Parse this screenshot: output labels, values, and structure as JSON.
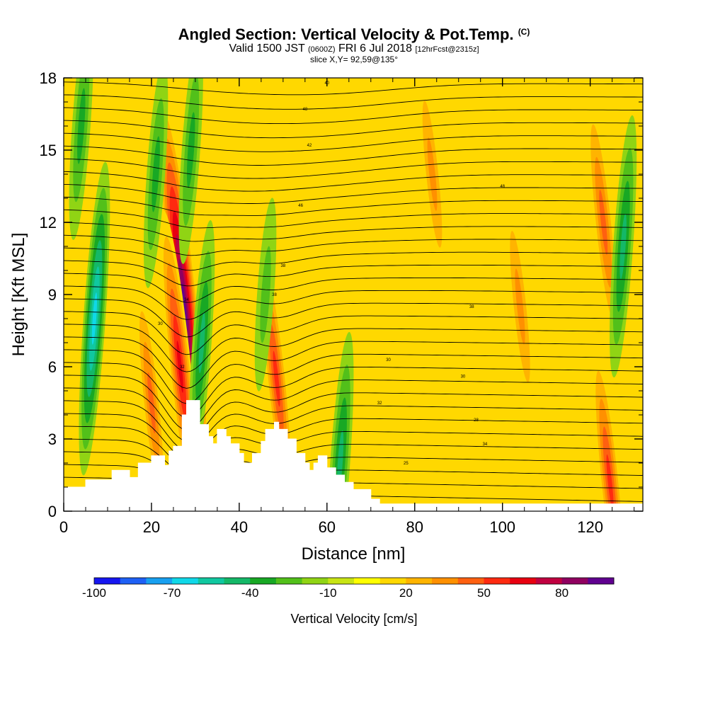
{
  "header": {
    "title": "Angled Section: Vertical Velocity & Pot.Temp.",
    "title_suffix": "(C)",
    "subtitle_main": "Valid 1500 JST",
    "subtitle_utc": "(0600Z)",
    "subtitle_date": "FRI 6 Jul 2018",
    "subtitle_fcst": "[12hrFcst@2315z]",
    "slice": "slice X,Y= 92,59@135°"
  },
  "chart_data": {
    "type": "heatmap",
    "xlabel": "Distance [nm]",
    "ylabel": "Height [Kft MSL]",
    "xlim": [
      0,
      132
    ],
    "ylim": [
      0,
      18
    ],
    "xticks": [
      0,
      20,
      40,
      60,
      80,
      100,
      120
    ],
    "yticks": [
      0,
      3,
      6,
      9,
      12,
      15,
      18
    ],
    "background_value": 15,
    "features": [
      {
        "kind": "updraft",
        "x": 27.5,
        "z": 8.5,
        "value": 90
      },
      {
        "kind": "updraft",
        "x": 26.5,
        "z": 6,
        "value": 55
      },
      {
        "kind": "updraft",
        "x": 48.5,
        "z": 5.5,
        "value": 45
      },
      {
        "kind": "updraft",
        "x": 20,
        "z": 4.5,
        "value": 35
      },
      {
        "kind": "updraft",
        "x": 104,
        "z": 8.5,
        "value": 30
      },
      {
        "kind": "updraft",
        "x": 123,
        "z": 12,
        "value": 40
      },
      {
        "kind": "updraft",
        "x": 84,
        "z": 14,
        "value": 28
      },
      {
        "kind": "updraft",
        "x": 124.5,
        "z": 1.2,
        "value": 45
      },
      {
        "kind": "downdraft",
        "x": 7,
        "z": 8,
        "value": -55
      },
      {
        "kind": "downdraft",
        "x": 21,
        "z": 14,
        "value": -30
      },
      {
        "kind": "downdraft",
        "x": 31.5,
        "z": 7,
        "value": -35
      },
      {
        "kind": "downdraft",
        "x": 29,
        "z": 15,
        "value": -30
      },
      {
        "kind": "downdraft",
        "x": 46,
        "z": 9,
        "value": -20
      },
      {
        "kind": "downdraft",
        "x": 63,
        "z": 2,
        "value": -40
      },
      {
        "kind": "downdraft",
        "x": 127.5,
        "z": 11,
        "value": -40
      },
      {
        "kind": "downdraft",
        "x": 4,
        "z": 16,
        "value": -30
      }
    ],
    "theta_contour_labels": [
      {
        "x": 28,
        "z": 8.8,
        "text": "34"
      },
      {
        "x": 27,
        "z": 6,
        "text": "32"
      },
      {
        "x": 22,
        "z": 7.8,
        "text": "30"
      },
      {
        "x": 48,
        "z": 9,
        "text": "38"
      },
      {
        "x": 50,
        "z": 10.2,
        "text": "38"
      },
      {
        "x": 54,
        "z": 12.7,
        "text": "46"
      },
      {
        "x": 56,
        "z": 15.2,
        "text": "42"
      },
      {
        "x": 55,
        "z": 16.7,
        "text": "48"
      },
      {
        "x": 60,
        "z": 17.8,
        "text": "40"
      },
      {
        "x": 74,
        "z": 6.3,
        "text": "30"
      },
      {
        "x": 72,
        "z": 4.5,
        "text": "32"
      },
      {
        "x": 58,
        "z": 1.8,
        "text": "28"
      },
      {
        "x": 91,
        "z": 5.6,
        "text": "30"
      },
      {
        "x": 94,
        "z": 3.8,
        "text": "28"
      },
      {
        "x": 96,
        "z": 2.8,
        "text": "34"
      },
      {
        "x": 100,
        "z": 13.5,
        "text": "48"
      },
      {
        "x": 93,
        "z": 8.5,
        "text": "38"
      },
      {
        "x": 78,
        "z": 2.0,
        "text": "25"
      }
    ],
    "terrain_note": "stepped terrain profile, white fill"
  },
  "colorbar": {
    "label": "Vertical Velocity [cm/s]",
    "min": -100,
    "max": 100,
    "step": 10,
    "tick_values": [
      -100,
      -70,
      -40,
      -10,
      20,
      50,
      80
    ],
    "tick_labels": [
      "-100",
      "-70",
      "-40",
      "-10",
      "20",
      "50",
      "80"
    ],
    "colors": [
      "#1616f0",
      "#1e60f5",
      "#18a0f0",
      "#10d8e8",
      "#10c8a0",
      "#14b868",
      "#18a824",
      "#52c01a",
      "#90d414",
      "#c8e414",
      "#ffff00",
      "#ffd800",
      "#ffb400",
      "#ff9000",
      "#ff6010",
      "#ff2a10",
      "#e80010",
      "#c00040",
      "#900060",
      "#600090"
    ]
  }
}
